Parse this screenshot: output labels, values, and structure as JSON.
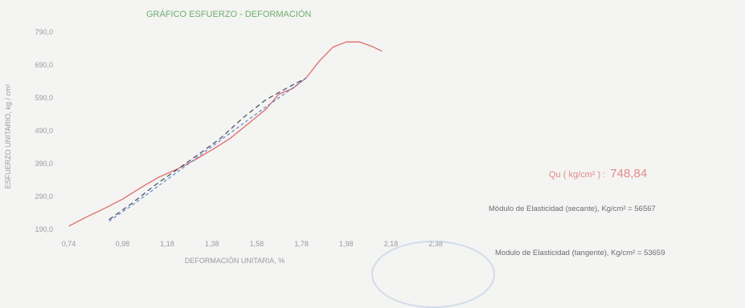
{
  "chart_data": {
    "type": "line",
    "title": "GRÁFICO ESFUERZO - DEFORMACIÓN",
    "xlabel": "DEFORMACIÓN UNITARIA, %",
    "ylabel": "ESFUERZO UNITARIO, kg / cm²",
    "xlim": [
      0.72,
      2.48
    ],
    "ylim": [
      190.0,
      790.0
    ],
    "x_ticks": [
      "0,74",
      "0,98",
      "1,18",
      "1,38",
      "1,58",
      "1,78",
      "1,98",
      "2,18",
      "2,38"
    ],
    "y_ticks": [
      "190,0",
      "290,0",
      "390,0",
      "490,0",
      "590,0",
      "690,0",
      "790,0"
    ],
    "grid": false,
    "series": [
      {
        "color": "#e06a6a",
        "style": "solid",
        "x": [
          0.74,
          0.82,
          0.9,
          0.98,
          1.06,
          1.14,
          1.22,
          1.3,
          1.38,
          1.46,
          1.54,
          1.62,
          1.68,
          1.74,
          1.8,
          1.86,
          1.92,
          1.98,
          2.04,
          2.1,
          2.14
        ],
        "y": [
          200,
          228,
          254,
          282,
          316,
          348,
          372,
          400,
          432,
          466,
          510,
          555,
          602,
          618,
          650,
          702,
          744,
          760,
          760,
          745,
          732
        ]
      },
      {
        "color": "#4a4a5a",
        "style": "dashed",
        "x": [
          0.92,
          1.02,
          1.12,
          1.22,
          1.32,
          1.42,
          1.52,
          1.62,
          1.72,
          1.8
        ],
        "y": [
          220,
          268,
          322,
          370,
          418,
          468,
          530,
          584,
          622,
          650
        ]
      },
      {
        "color": "#5a8cd0",
        "style": "dashed",
        "x": [
          0.92,
          1.02,
          1.12,
          1.22,
          1.32,
          1.42,
          1.52,
          1.62,
          1.72,
          1.8
        ],
        "y": [
          215,
          262,
          312,
          362,
          412,
          462,
          512,
          562,
          610,
          650
        ]
      }
    ]
  },
  "annotations": {
    "qu_label": "Qu ( kg/cm² ) :",
    "qu_value": "748,84",
    "modulus_secant": "Módulo de Elasticidad (secante), Kg/cm² = 56567",
    "modulus_tangent": "Modulo de Elasticidad (tangente), Kg/cm² = 53659"
  },
  "colors": {
    "title": "#6fae6f",
    "qu": "#e08a8a",
    "stamp": "#b9cbe6"
  }
}
